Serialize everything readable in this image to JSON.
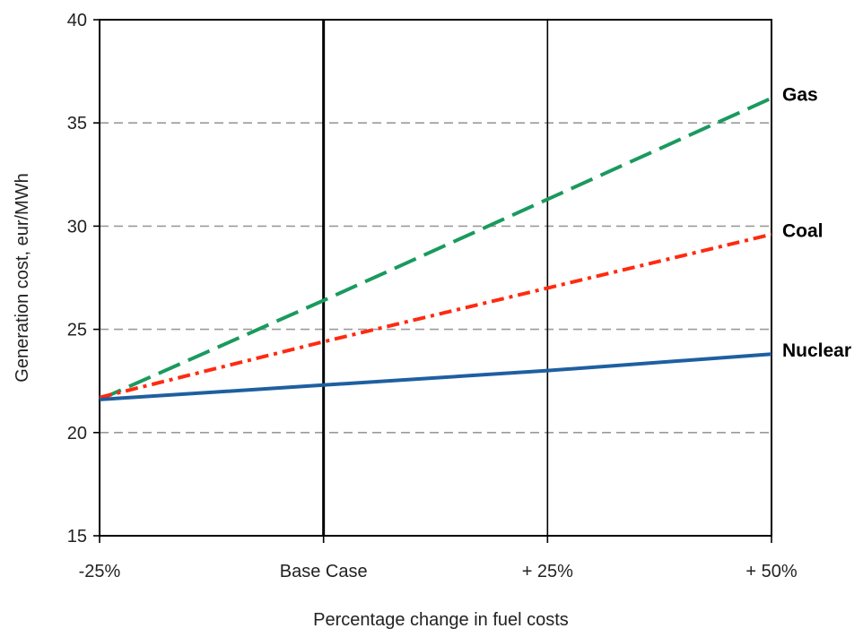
{
  "chart_data": {
    "type": "line",
    "title": "",
    "xlabel": "Percentage change in fuel costs",
    "ylabel": "Generation cost, eur/MWh",
    "categories": [
      "-25%",
      "Base Case",
      "+ 25%",
      "+ 50%"
    ],
    "ylim": [
      15,
      40
    ],
    "yticks": [
      15,
      20,
      25,
      30,
      35,
      40
    ],
    "grid": {
      "horizontal": "dashed",
      "vertical": "solid"
    },
    "series": [
      {
        "name": "Gas",
        "values": [
          21.6,
          26.4,
          31.3,
          36.2
        ],
        "color": "#1a9a5e",
        "style": "dashed"
      },
      {
        "name": "Coal",
        "values": [
          21.7,
          24.4,
          27.0,
          29.6
        ],
        "color": "#ff2a10",
        "style": "dash-dot"
      },
      {
        "name": "Nuclear",
        "values": [
          21.6,
          22.3,
          23.0,
          23.8
        ],
        "color": "#1f5fa0",
        "style": "solid"
      }
    ]
  }
}
